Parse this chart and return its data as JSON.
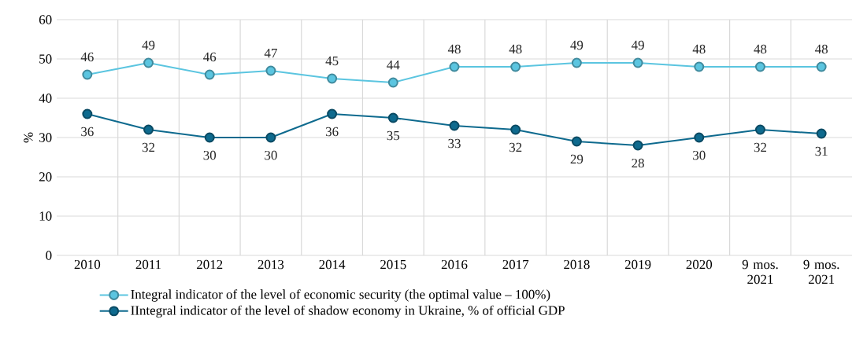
{
  "chart_data": {
    "type": "line",
    "ylabel": "%",
    "categories": [
      "2010",
      "2011",
      "2012",
      "2013",
      "2014",
      "2015",
      "2016",
      "2017",
      "2018",
      "2019",
      "2020",
      "9 mos. 2021",
      "9 mos. 2021"
    ],
    "series": [
      {
        "name": "Integral indicator of the level of economic security (the optimal value – 100%)",
        "color": "#5bc5e0",
        "values": [
          46,
          49,
          46,
          47,
          45,
          44,
          48,
          48,
          49,
          49,
          48,
          48,
          48
        ]
      },
      {
        "name": "IIntegral indicator of the level of shadow economy in Ukraine, % of official GDP",
        "color": "#0e6a8e",
        "values": [
          36,
          32,
          30,
          30,
          36,
          35,
          33,
          32,
          29,
          28,
          30,
          32,
          31
        ]
      }
    ],
    "ylim": [
      0,
      60
    ],
    "yticks": [
      0,
      10,
      20,
      30,
      40,
      50,
      60
    ],
    "grid": true,
    "legend": "bottom",
    "marker": "circle",
    "line_style": "solid",
    "data_labels": true
  }
}
